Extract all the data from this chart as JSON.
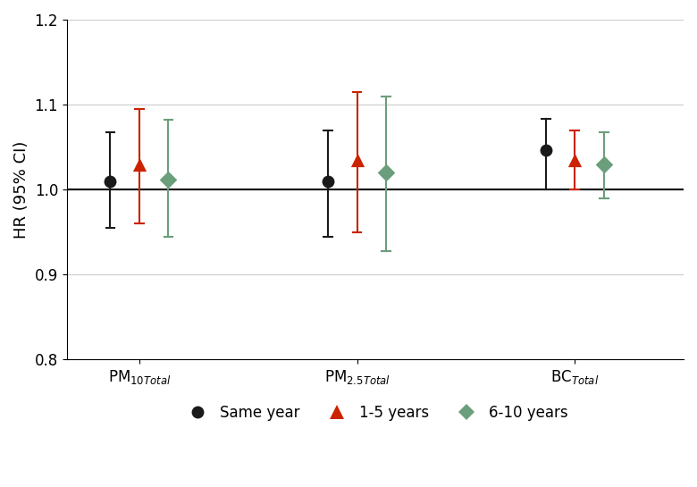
{
  "groups": [
    "PM$_{10Total}$",
    "PM$_{2.5Total}$",
    "BC$_{Total}$"
  ],
  "group_positions": [
    1,
    4,
    7
  ],
  "series": [
    {
      "label": "Same year",
      "color": "#1a1a1a",
      "marker": "o",
      "offsets": [
        -0.4,
        -0.4,
        -0.4
      ],
      "hr": [
        1.01,
        1.01,
        1.046
      ],
      "ci_lo": [
        0.955,
        0.945,
        1.0
      ],
      "ci_hi": [
        1.067,
        1.07,
        1.083
      ]
    },
    {
      "label": "1-5 years",
      "color": "#cc2200",
      "marker": "^",
      "offsets": [
        0.0,
        0.0,
        0.0
      ],
      "hr": [
        1.03,
        1.035,
        1.035
      ],
      "ci_lo": [
        0.96,
        0.95,
        1.0
      ],
      "ci_hi": [
        1.095,
        1.115,
        1.07
      ]
    },
    {
      "label": "6-10 years",
      "color": "#6b9e7a",
      "marker": "D",
      "offsets": [
        0.4,
        0.4,
        0.4
      ],
      "hr": [
        1.012,
        1.02,
        1.03
      ],
      "ci_lo": [
        0.945,
        0.928,
        0.99
      ],
      "ci_hi": [
        1.082,
        1.11,
        1.068
      ]
    }
  ],
  "ylim": [
    0.8,
    1.2
  ],
  "yticks": [
    0.8,
    0.9,
    1.0,
    1.1,
    1.2
  ],
  "ylabel": "HR (95% CI)",
  "hline_y": 1.0,
  "bg_color": "#ffffff",
  "grid_color": "#cccccc",
  "legend_labels": [
    "Same year",
    "1-5 years",
    "6-10 years"
  ],
  "legend_colors": [
    "#1a1a1a",
    "#cc2200",
    "#6b9e7a"
  ],
  "legend_markers": [
    "o",
    "^",
    "D"
  ]
}
